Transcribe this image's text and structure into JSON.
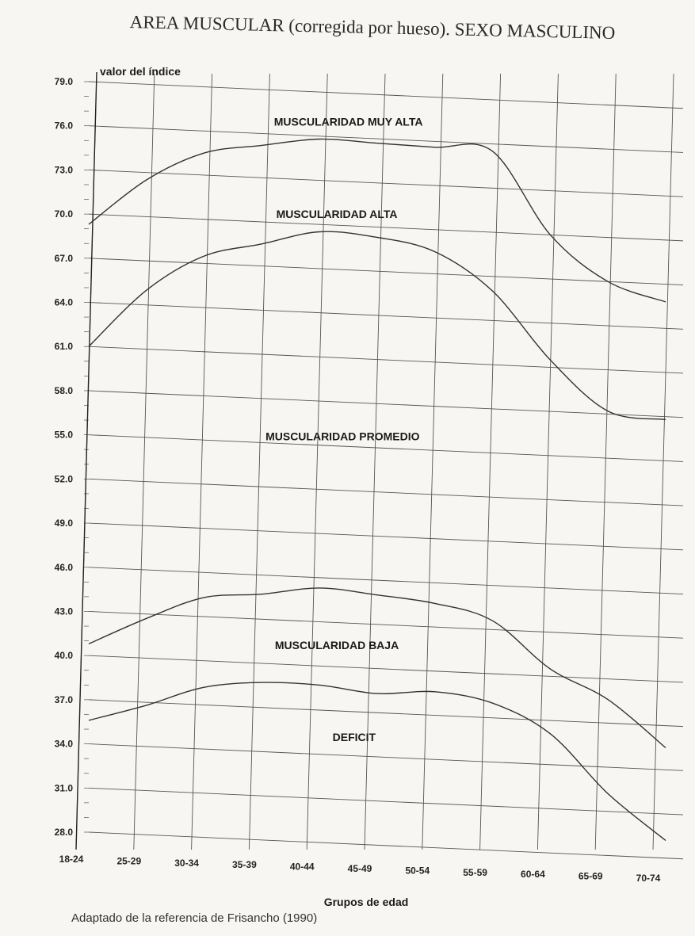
{
  "title": "AREA MUSCULAR (corregida por hueso). SEXO MASCULINO",
  "source_note": "Adaptado de la referencia de Frisancho (1990)",
  "colors": {
    "background": "#f7f6f2",
    "grid": "#555555",
    "curve": "#333333",
    "text": "#1e1e1e"
  },
  "chart_data": {
    "type": "line",
    "title": "AREA MUSCULAR (corregida por hueso). SEXO MASCULINO",
    "ylabel": "valor del índice",
    "xlabel": "Grupos de edad",
    "categories": [
      "18-24",
      "25-29",
      "30-34",
      "35-39",
      "40-44",
      "45-49",
      "50-54",
      "55-59",
      "60-64",
      "65-69",
      "70-74"
    ],
    "y_ticks": [
      "79.0",
      "76.0",
      "73.0",
      "70.0",
      "67.0",
      "64.0",
      "61.0",
      "58.0",
      "55.0",
      "52.0",
      "49.0",
      "46.0",
      "43.0",
      "40.0",
      "37.0",
      "34.0",
      "31.0",
      "28.0"
    ],
    "ylim": [
      28,
      79
    ],
    "grid": true,
    "series": [
      {
        "values": [
          69.3,
          72.5,
          74.5,
          75.2,
          75.8,
          75.7,
          75.6,
          75.5,
          70.0,
          67.0,
          65.8
        ]
      },
      {
        "values": [
          61.0,
          65.0,
          67.5,
          68.5,
          69.5,
          69.3,
          68.5,
          66.0,
          61.5,
          58.2,
          57.8
        ]
      },
      {
        "values": [
          40.8,
          42.7,
          44.3,
          44.7,
          45.3,
          45.0,
          44.6,
          43.6,
          40.5,
          38.6,
          35.5
        ]
      },
      {
        "values": [
          35.6,
          36.8,
          38.2,
          38.7,
          38.7,
          38.3,
          38.6,
          38.0,
          36.1,
          32.2,
          29.2
        ]
      }
    ],
    "band_labels": [
      {
        "text": "MUSCULARIDAD MUY ALTA",
        "x": 4.5,
        "y": 76.8
      },
      {
        "text": "MUSCULARIDAD ALTA",
        "x": 4.3,
        "y": 70.5
      },
      {
        "text": "MUSCULARIDAD PROMEDIO",
        "x": 4.4,
        "y": 55.4
      },
      {
        "text": "MUSCULARIDAD BAJA",
        "x": 4.3,
        "y": 41.2
      },
      {
        "text": "DEFICIT",
        "x": 4.6,
        "y": 35.0
      }
    ]
  }
}
